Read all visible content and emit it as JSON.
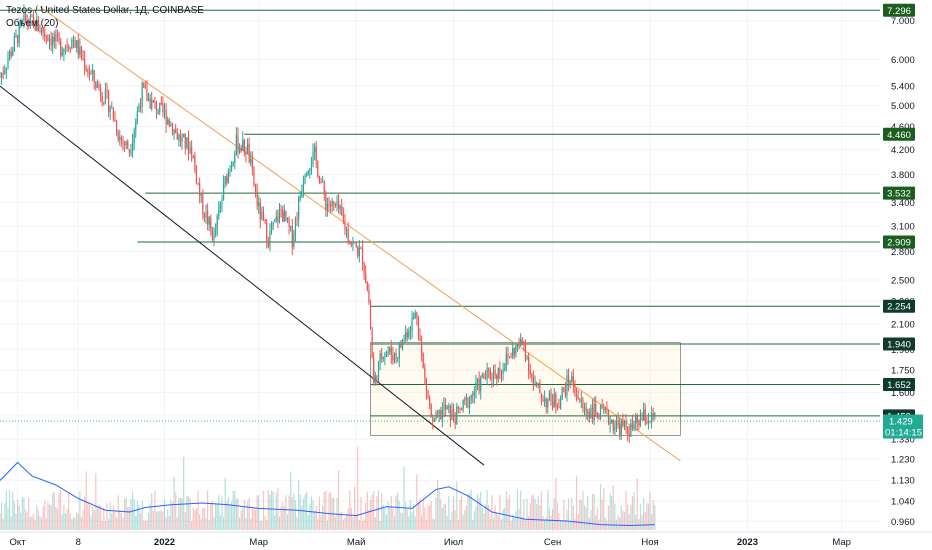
{
  "header": {
    "title": "Tezos / United States Dollar, 1Д, COINBASE",
    "volume_label": "Объем (20)"
  },
  "price_axis": {
    "currency": "USD"
  },
  "colors": {
    "up": "#26a69a",
    "down": "#ef5350",
    "level": "#1e6b3a",
    "orange_trend": "#f0a050",
    "black_trend": "#131722",
    "volume_ma": "#2962ff",
    "current_price": "#22ab94"
  },
  "current_price": {
    "value": "1.429",
    "countdown": "01:14:15"
  },
  "chart_data": {
    "type": "candlestick",
    "title": "Tezos / United States Dollar, 1Д, COINBASE",
    "y_scale": "log",
    "ylim": [
      0.92,
      7.6
    ],
    "x_range": [
      "2021-09-20",
      "2023-03-25"
    ],
    "y_ticks": [
      "7.000",
      "6.000",
      "5.400",
      "5.000",
      "4.600",
      "4.200",
      "3.800",
      "3.400",
      "3.100",
      "2.800",
      "2.500",
      "2.300",
      "2.100",
      "1.900",
      "1.750",
      "1.600",
      "1.459",
      "1.330",
      "1.230",
      "1.130",
      "1.040",
      "0.960"
    ],
    "y_tick_values": [
      7.0,
      6.0,
      5.4,
      5.0,
      4.6,
      4.2,
      3.8,
      3.4,
      3.1,
      2.8,
      2.5,
      2.3,
      2.1,
      1.9,
      1.75,
      1.6,
      1.459,
      1.33,
      1.23,
      1.13,
      1.04,
      0.96
    ],
    "x_ticks": [
      {
        "label": "Окт",
        "date": "2021-10-01"
      },
      {
        "label": "8",
        "date": "2021-11-08"
      },
      {
        "label": "2022",
        "date": "2022-01-01"
      },
      {
        "label": "Мар",
        "date": "2022-03-01"
      },
      {
        "label": "Май",
        "date": "2022-05-01"
      },
      {
        "label": "Июл",
        "date": "2022-07-01"
      },
      {
        "label": "Сен",
        "date": "2022-09-01"
      },
      {
        "label": "Ноя",
        "date": "2022-11-01"
      },
      {
        "label": "2023",
        "date": "2023-01-01"
      },
      {
        "label": "Мар",
        "date": "2023-03-01"
      }
    ],
    "horizontal_levels": [
      {
        "label": "7.296",
        "value": 7.296,
        "start": "2021-09-20"
      },
      {
        "label": "4.460",
        "value": 4.46,
        "start": "2022-02-20"
      },
      {
        "label": "3.532",
        "value": 3.532,
        "start": "2021-12-20"
      },
      {
        "label": "2.909",
        "value": 2.909,
        "start": "2021-12-15"
      },
      {
        "label": "2.254",
        "value": 2.254,
        "start": "2022-05-10"
      },
      {
        "label": "1.940",
        "value": 1.94,
        "start": "2022-05-10"
      },
      {
        "label": "1.652",
        "value": 1.652,
        "start": "2022-05-10"
      },
      {
        "label": "1.459",
        "value": 1.459,
        "start": "2022-05-10"
      }
    ],
    "range_box": {
      "start": "2022-05-10",
      "end": "2022-11-20",
      "top": 1.95,
      "bottom": 1.35
    },
    "trendlines": [
      {
        "name": "orange",
        "from": {
          "date": "2021-10-15",
          "value": 7.4
        },
        "to": {
          "date": "2022-11-20",
          "value": 1.22
        }
      },
      {
        "name": "black",
        "from": {
          "date": "2021-09-20",
          "value": 5.4
        },
        "to": {
          "date": "2022-07-20",
          "value": 1.2
        }
      }
    ],
    "price_path": [
      [
        "2021-09-20",
        5.6
      ],
      [
        "2021-09-28",
        6.3
      ],
      [
        "2021-10-05",
        7.0
      ],
      [
        "2021-10-12",
        6.9
      ],
      [
        "2021-10-20",
        6.6
      ],
      [
        "2021-10-28",
        6.3
      ],
      [
        "2021-11-05",
        6.5
      ],
      [
        "2021-11-12",
        5.9
      ],
      [
        "2021-11-20",
        5.4
      ],
      [
        "2021-11-28",
        5.0
      ],
      [
        "2021-12-04",
        4.4
      ],
      [
        "2021-12-10",
        4.2
      ],
      [
        "2021-12-18",
        5.3
      ],
      [
        "2021-12-25",
        5.0
      ],
      [
        "2022-01-02",
        4.8
      ],
      [
        "2022-01-10",
        4.4
      ],
      [
        "2022-01-18",
        4.2
      ],
      [
        "2022-01-24",
        3.4
      ],
      [
        "2022-02-01",
        2.95
      ],
      [
        "2022-02-08",
        3.7
      ],
      [
        "2022-02-15",
        4.3
      ],
      [
        "2022-02-22",
        4.2
      ],
      [
        "2022-03-01",
        3.3
      ],
      [
        "2022-03-07",
        2.95
      ],
      [
        "2022-03-15",
        3.3
      ],
      [
        "2022-03-22",
        2.95
      ],
      [
        "2022-03-30",
        3.9
      ],
      [
        "2022-04-05",
        4.1
      ],
      [
        "2022-04-12",
        3.4
      ],
      [
        "2022-04-20",
        3.3
      ],
      [
        "2022-04-28",
        2.9
      ],
      [
        "2022-05-05",
        2.75
      ],
      [
        "2022-05-09",
        2.3
      ],
      [
        "2022-05-12",
        1.65
      ],
      [
        "2022-05-18",
        1.9
      ],
      [
        "2022-05-26",
        1.85
      ],
      [
        "2022-06-02",
        2.05
      ],
      [
        "2022-06-08",
        2.2
      ],
      [
        "2022-06-12",
        1.75
      ],
      [
        "2022-06-18",
        1.4
      ],
      [
        "2022-06-25",
        1.5
      ],
      [
        "2022-07-02",
        1.45
      ],
      [
        "2022-07-10",
        1.55
      ],
      [
        "2022-07-20",
        1.7
      ],
      [
        "2022-07-30",
        1.75
      ],
      [
        "2022-08-08",
        1.9
      ],
      [
        "2022-08-14",
        1.95
      ],
      [
        "2022-08-20",
        1.65
      ],
      [
        "2022-08-28",
        1.55
      ],
      [
        "2022-09-05",
        1.55
      ],
      [
        "2022-09-12",
        1.7
      ],
      [
        "2022-09-20",
        1.5
      ],
      [
        "2022-09-28",
        1.48
      ],
      [
        "2022-10-05",
        1.45
      ],
      [
        "2022-10-12",
        1.4
      ],
      [
        "2022-10-20",
        1.38
      ],
      [
        "2022-10-28",
        1.45
      ],
      [
        "2022-11-04",
        1.43
      ]
    ],
    "volume_ma_path": [
      [
        "2021-09-20",
        0.55
      ],
      [
        "2021-10-01",
        0.75
      ],
      [
        "2021-10-10",
        0.6
      ],
      [
        "2021-10-25",
        0.5
      ],
      [
        "2021-11-08",
        0.35
      ],
      [
        "2021-11-25",
        0.22
      ],
      [
        "2021-12-10",
        0.2
      ],
      [
        "2021-12-20",
        0.25
      ],
      [
        "2022-01-05",
        0.28
      ],
      [
        "2022-01-25",
        0.3
      ],
      [
        "2022-02-10",
        0.28
      ],
      [
        "2022-03-01",
        0.24
      ],
      [
        "2022-03-25",
        0.22
      ],
      [
        "2022-04-15",
        0.18
      ],
      [
        "2022-05-01",
        0.16
      ],
      [
        "2022-05-20",
        0.26
      ],
      [
        "2022-06-05",
        0.24
      ],
      [
        "2022-06-20",
        0.45
      ],
      [
        "2022-06-28",
        0.48
      ],
      [
        "2022-07-10",
        0.38
      ],
      [
        "2022-07-25",
        0.2
      ],
      [
        "2022-08-15",
        0.12
      ],
      [
        "2022-09-10",
        0.1
      ],
      [
        "2022-10-01",
        0.06
      ],
      [
        "2022-10-20",
        0.05
      ],
      [
        "2022-11-04",
        0.06
      ]
    ]
  }
}
